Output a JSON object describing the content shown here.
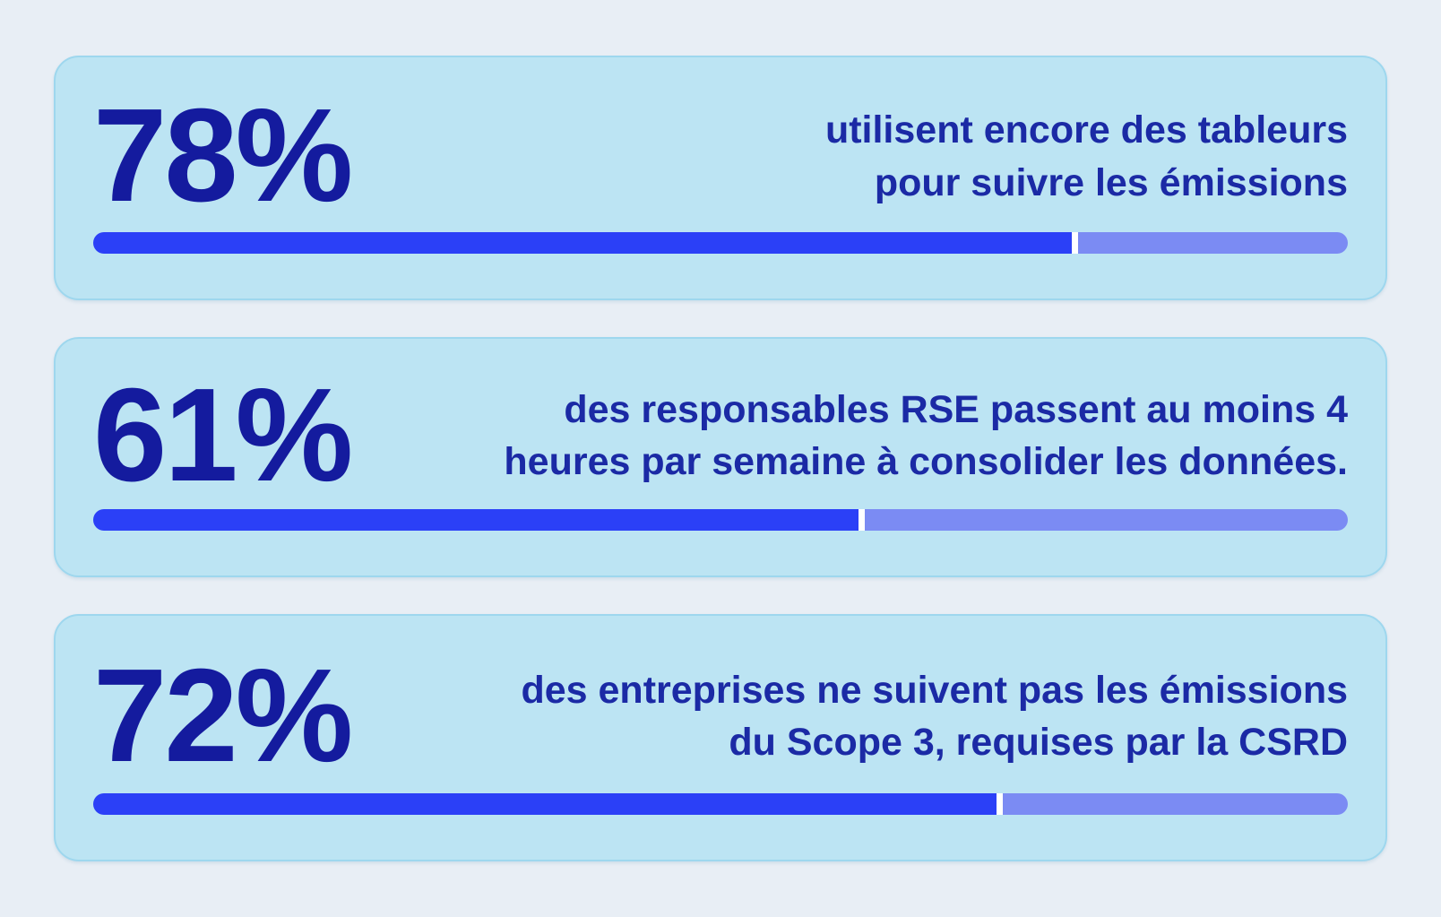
{
  "colors": {
    "page_background": "#e8eef5",
    "card_background": "#bce4f3",
    "card_border": "#9ed7ee",
    "stat_number": "#141b9e",
    "description_text": "#1b2aa5",
    "bar_fill": "#2b40f7",
    "bar_remainder": "#7b8bf3",
    "bar_gap": "#ffffff"
  },
  "cards": [
    {
      "value": "78%",
      "percent": 78,
      "lines": [
        "utilisent encore des tableurs",
        "pour suivre les émissions"
      ]
    },
    {
      "value": "61%",
      "percent": 61,
      "lines": [
        "des responsables RSE passent au moins 4",
        "heures par semaine à consolider les données."
      ]
    },
    {
      "value": "72%",
      "percent": 72,
      "lines": [
        "des entreprises ne suivent pas les émissions",
        "du Scope 3, requises par la CSRD"
      ]
    }
  ],
  "chart_data": {
    "type": "bar",
    "categories": [
      "utilisent encore des tableurs pour suivre les émissions",
      "des responsables RSE passent au moins 4 heures par semaine à consolider les données.",
      "des entreprises ne suivent pas les émissions du Scope 3, requises par la CSRD"
    ],
    "values": [
      78,
      61,
      72
    ],
    "title": "",
    "xlabel": "",
    "ylabel": "",
    "unit": "%",
    "ylim": [
      0,
      100
    ],
    "orientation": "horizontal",
    "grid": false,
    "legend": false
  }
}
